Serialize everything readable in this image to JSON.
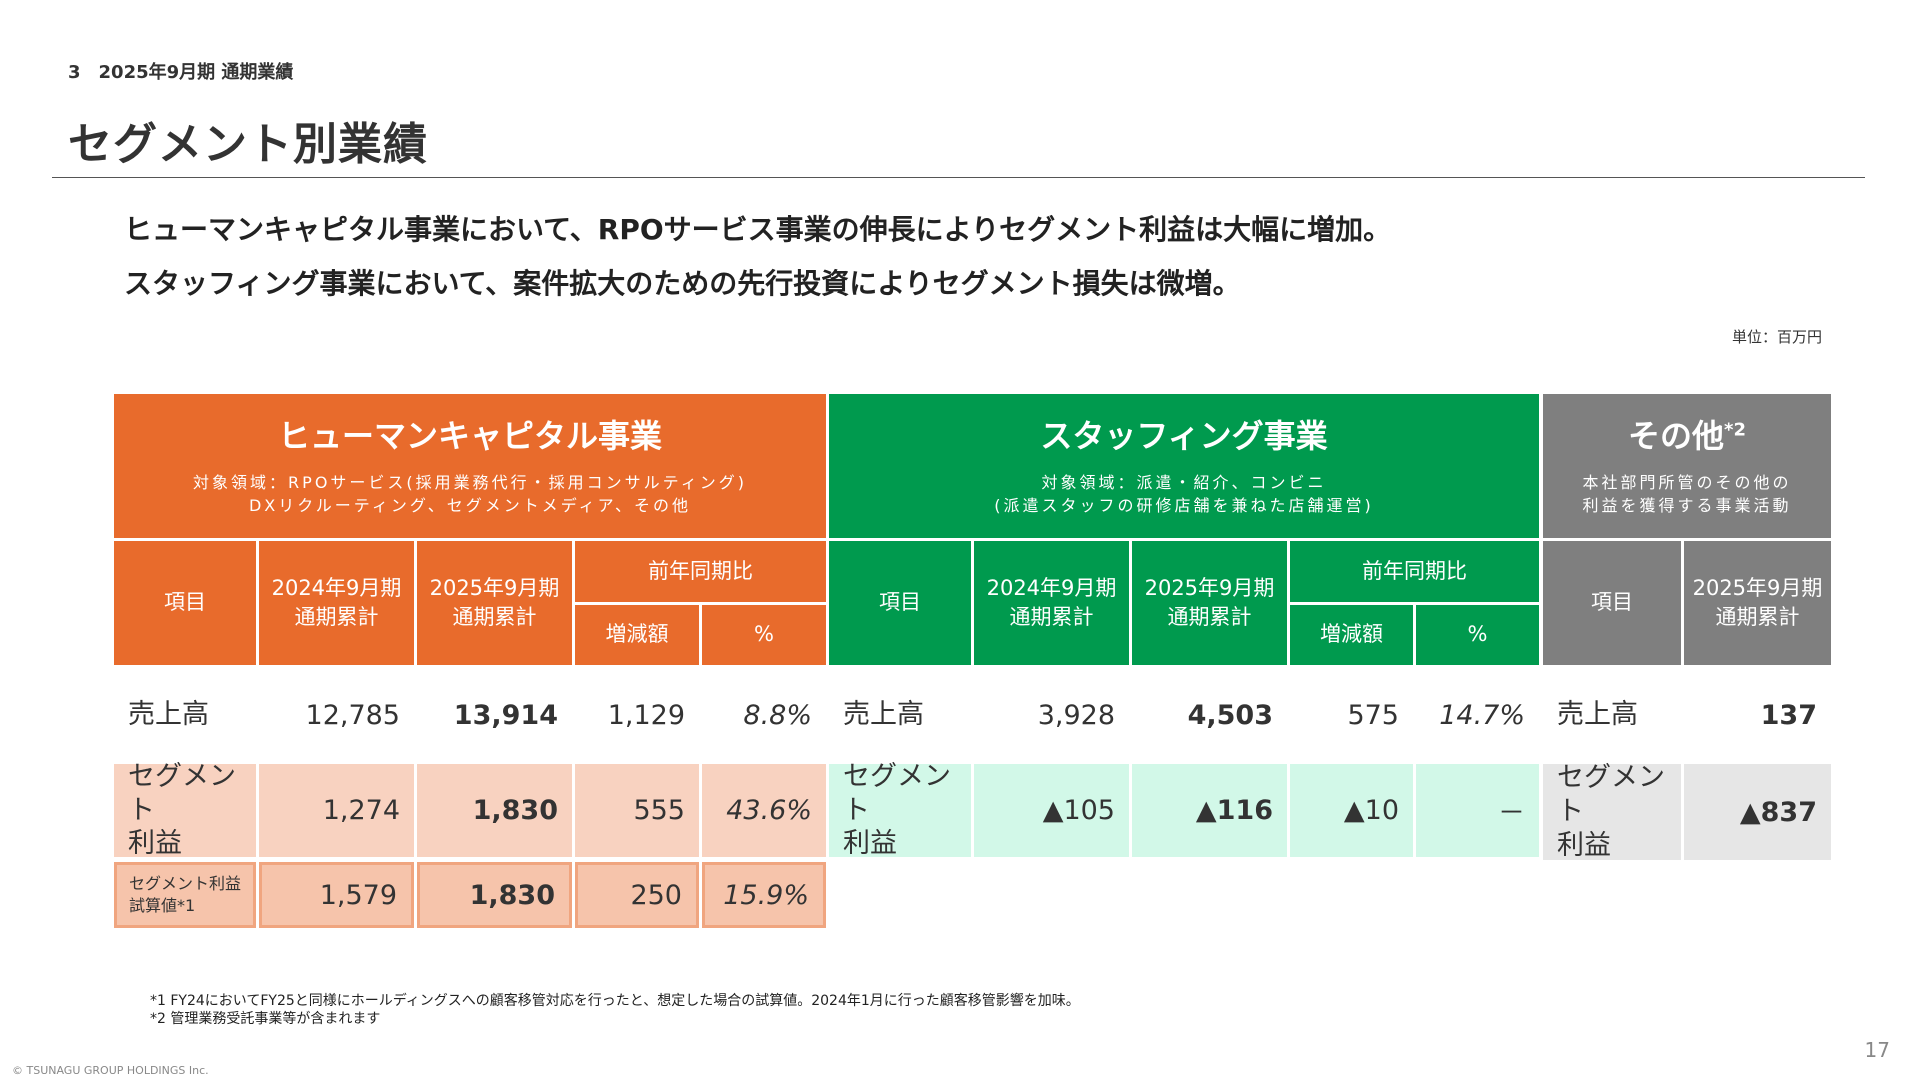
{
  "header": {
    "section": "3　2025年9月期 通期業績",
    "title": "セグメント別業績"
  },
  "lead": [
    "ヒューマンキャピタル事業において、RPOサービス事業の伸長によりセグメント利益は大幅に増加。",
    "スタッフィング事業において、案件拡大のための先行投資によりセグメント損失は微増。"
  ],
  "unit": "単位：百万円",
  "segments": {
    "hc": {
      "title": "ヒューマンキャピタル事業",
      "desc1": "対象領域：RPOサービス(採用業務代行・採用コンサルティング)",
      "desc2": "DXリクルーティング、セグメントメディア、その他"
    },
    "st": {
      "title": "スタッフィング事業",
      "desc1": "対象領域：派遣・紹介、コンビニ",
      "desc2": "(派遣スタッフの研修店舗を兼ねた店舗運営)"
    },
    "ot": {
      "title": "その他",
      "mark": "*2",
      "desc1": "本社部門所管のその他の",
      "desc2": "利益を獲得する事業活動"
    }
  },
  "columns": {
    "item": "項目",
    "fy24": "2024年9月期\n通期累計",
    "fy25": "2025年9月期\n通期累計",
    "yoy": "前年同期比",
    "diff": "増減額",
    "pct": "%"
  },
  "rows": {
    "sales_label": "売上高",
    "profit_label": "セグメント\n利益",
    "trial_label": "セグメント利益\n試算値*1"
  },
  "hc": {
    "sales": {
      "fy24": "12,785",
      "fy25": "13,914",
      "diff": "1,129",
      "pct": "8.8%"
    },
    "profit": {
      "fy24": "1,274",
      "fy25": "1,830",
      "diff": "555",
      "pct": "43.6%"
    },
    "trial": {
      "fy24": "1,579",
      "fy25": "1,830",
      "diff": "250",
      "pct": "15.9%"
    }
  },
  "st": {
    "sales": {
      "fy24": "3,928",
      "fy25": "4,503",
      "diff": "575",
      "pct": "14.7%"
    },
    "profit": {
      "fy24": "▲105",
      "fy25": "▲116",
      "diff": "▲10",
      "pct": "－"
    }
  },
  "ot": {
    "sales": {
      "fy25": "137"
    },
    "profit": {
      "fy25": "▲837"
    }
  },
  "footnotes": [
    "*1 FY24においてFY25と同様にホールディングスへの顧客移管対応を行ったと、想定した場合の試算値。2024年1月に行った顧客移管影響を加味。",
    "*2 管理業務受託事業等が含まれます"
  ],
  "page_number": "17",
  "copyright": "© TSUNAGU GROUP HOLDINGS Inc."
}
